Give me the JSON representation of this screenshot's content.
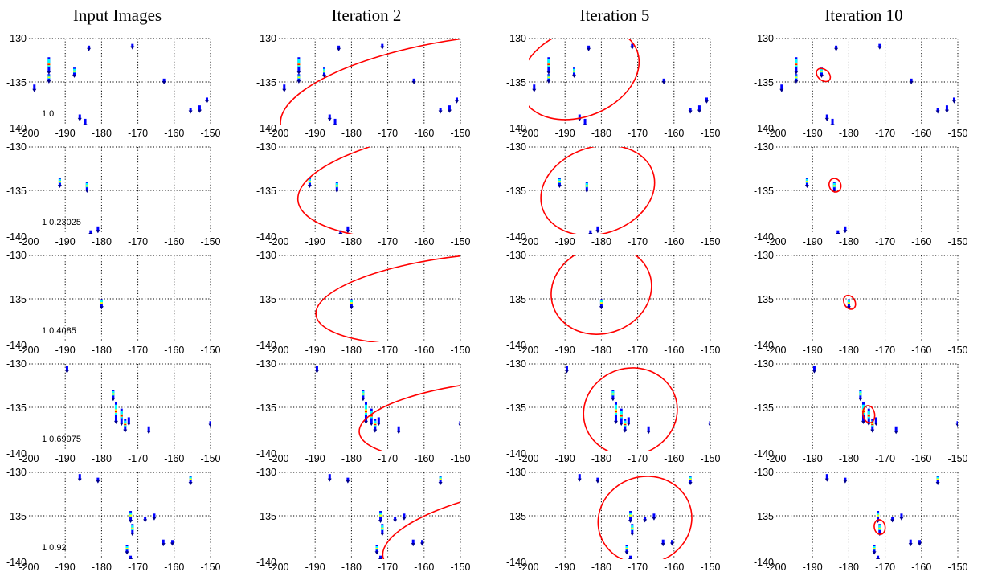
{
  "colors": {
    "ellipse": "#ff0000",
    "grid": "#000000",
    "blob_palette": [
      "#00008f",
      "#0000ff",
      "#0080ff",
      "#00ffff",
      "#80ff80",
      "#ffff00",
      "#ff8000",
      "#ff0000"
    ]
  },
  "chart_data": {
    "type": "scatter",
    "layout": "grid",
    "columns": [
      "Input Images",
      "Iteration 2",
      "Iteration 5",
      "Iteration 10"
    ],
    "x_ticks": [
      -200,
      -190,
      -180,
      -170,
      -160,
      -150
    ],
    "x_tick_labels": [
      "-200",
      "-190",
      "-180",
      "-170",
      "-160",
      "-150"
    ],
    "y_ticks": [
      -130,
      -135,
      -140
    ],
    "y_tick_labels": [
      "-130",
      "-135",
      "-140"
    ],
    "xlim": [
      -200,
      -150
    ],
    "ylim": [
      -140,
      -130
    ],
    "grid": true,
    "rows": [
      {
        "annotation": "1 0",
        "points": [
          {
            "x": -198.5,
            "y": -135.6,
            "h": 0.6
          },
          {
            "x": -194.5,
            "y": -133.0,
            "h": 1.7
          },
          {
            "x": -194.5,
            "y": -134.5,
            "h": 0.8
          },
          {
            "x": -187.5,
            "y": -133.8,
            "h": 0.9
          },
          {
            "x": -186.0,
            "y": -139.0,
            "h": 0.5
          },
          {
            "x": -184.5,
            "y": -139.6,
            "h": 0.7
          },
          {
            "x": -183.5,
            "y": -131.0,
            "h": 0.2
          },
          {
            "x": -171.5,
            "y": -130.8,
            "h": 0.3
          },
          {
            "x": -162.8,
            "y": -134.8,
            "h": 0.3
          },
          {
            "x": -155.5,
            "y": -138.2,
            "h": 0.3
          },
          {
            "x": -153.0,
            "y": -138.0,
            "h": 0.6
          },
          {
            "x": -151.0,
            "y": -137.0,
            "h": 0.4
          }
        ],
        "ellipses": [
          null,
          {
            "cx": -148,
            "cy": -137,
            "rx": 52,
            "ry": 7,
            "angle": -8
          },
          {
            "cx": -186,
            "cy": -134,
            "rx": 17,
            "ry": 5,
            "angle": -22
          },
          {
            "cx": -187.0,
            "cy": -134.2,
            "rx": 1.5,
            "ry": 0.9,
            "angle": -50
          }
        ]
      },
      {
        "annotation": "1 0.23025",
        "points": [
          {
            "x": -191.5,
            "y": -134.0,
            "h": 0.9
          },
          {
            "x": -184.0,
            "y": -134.5,
            "h": 1.0
          },
          {
            "x": -183.0,
            "y": -139.8,
            "h": 0.4
          },
          {
            "x": -181.0,
            "y": -139.4,
            "h": 0.5
          }
        ],
        "ellipses": [
          null,
          {
            "cx": -145,
            "cy": -134,
            "rx": 50,
            "ry": 6.5,
            "angle": -6
          },
          {
            "cx": -181,
            "cy": -135,
            "rx": 16,
            "ry": 5,
            "angle": -18
          },
          {
            "cx": -183.8,
            "cy": -134.4,
            "rx": 1.6,
            "ry": 0.8,
            "angle": -20
          }
        ]
      },
      {
        "annotation": "1 0.4085",
        "points": [
          {
            "x": -180.0,
            "y": -135.5,
            "h": 0.9
          }
        ],
        "ellipses": [
          null,
          {
            "cx": -148,
            "cy": -135,
            "rx": 42,
            "ry": 5,
            "angle": -6
          },
          {
            "cx": -180,
            "cy": -134,
            "rx": 14,
            "ry": 5,
            "angle": -18
          },
          {
            "cx": -179.8,
            "cy": -135.4,
            "rx": 1.5,
            "ry": 0.85,
            "angle": -30
          }
        ]
      },
      {
        "annotation": "1 0.69975",
        "points": [
          {
            "x": -189.5,
            "y": -130.5,
            "h": 0.6
          },
          {
            "x": -176.8,
            "y": -133.5,
            "h": 1.0
          },
          {
            "x": -176.0,
            "y": -135.5,
            "h": 2.3
          },
          {
            "x": -174.5,
            "y": -136.0,
            "h": 1.7
          },
          {
            "x": -173.5,
            "y": -137.0,
            "h": 1.3
          },
          {
            "x": -172.5,
            "y": -136.5,
            "h": 0.7
          },
          {
            "x": -167.0,
            "y": -137.5,
            "h": 0.6
          },
          {
            "x": -150.0,
            "y": -136.8,
            "h": 0.4
          }
        ],
        "ellipses": [
          null,
          {
            "cx": -140,
            "cy": -136.5,
            "rx": 38,
            "ry": 4.5,
            "angle": -5
          },
          {
            "cx": -172,
            "cy": -135.5,
            "rx": 13,
            "ry": 5,
            "angle": -18
          },
          {
            "cx": -174.5,
            "cy": -135.8,
            "rx": 1.6,
            "ry": 1.0,
            "angle": -10
          }
        ]
      },
      {
        "annotation": "1 0.92",
        "points": [
          {
            "x": -186.0,
            "y": -130.5,
            "h": 0.6
          },
          {
            "x": -181.0,
            "y": -130.8,
            "h": 0.3
          },
          {
            "x": -172.0,
            "y": -135.0,
            "h": 1.1
          },
          {
            "x": -171.5,
            "y": -136.5,
            "h": 1.1
          },
          {
            "x": -168.0,
            "y": -135.3,
            "h": 0.4
          },
          {
            "x": -165.5,
            "y": -135.0,
            "h": 0.5
          },
          {
            "x": -163.0,
            "y": -138.0,
            "h": 0.5
          },
          {
            "x": -160.5,
            "y": -138.0,
            "h": 0.4
          },
          {
            "x": -155.5,
            "y": -130.8,
            "h": 0.8
          },
          {
            "x": -173.0,
            "y": -138.8,
            "h": 0.8
          },
          {
            "x": -172.0,
            "y": -139.8,
            "h": 0.4
          }
        ],
        "ellipses": [
          null,
          {
            "cx": -140,
            "cy": -137,
            "rx": 32,
            "ry": 4.5,
            "angle": -12
          },
          {
            "cx": -168,
            "cy": -135.5,
            "rx": 13,
            "ry": 5,
            "angle": -18
          },
          {
            "cx": -171.5,
            "cy": -136.3,
            "rx": 1.5,
            "ry": 0.85,
            "angle": -10
          }
        ]
      }
    ]
  }
}
